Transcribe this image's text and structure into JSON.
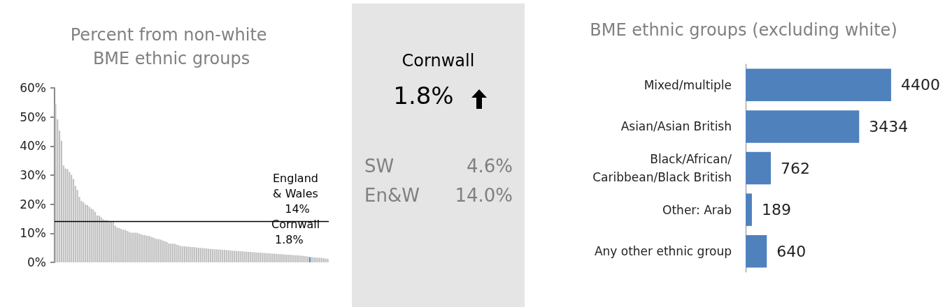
{
  "chart_data": [
    {
      "type": "bar",
      "title": "Percent from non-white BME ethnic groups",
      "categories": [
        null,
        null,
        null,
        null,
        null,
        null,
        null,
        null,
        null,
        null,
        null,
        null,
        null,
        null,
        null,
        null,
        null,
        null,
        null,
        null,
        null,
        null,
        null,
        null,
        null,
        null,
        null,
        null,
        null,
        null,
        null,
        null,
        null,
        null,
        null,
        null,
        null,
        null,
        null,
        null,
        null,
        null,
        null,
        null,
        null,
        null,
        null,
        null,
        null,
        null,
        null,
        null,
        null,
        null,
        null,
        null,
        null,
        null,
        null,
        null,
        null,
        null,
        null,
        null,
        null,
        null,
        null,
        null,
        null,
        null,
        null,
        null,
        null,
        null,
        null,
        null,
        null,
        null,
        null,
        null,
        null,
        null,
        null,
        null,
        null,
        null,
        null,
        null,
        null,
        null,
        null,
        null,
        null,
        null,
        null,
        null,
        null,
        null,
        null,
        null,
        null,
        null,
        null,
        null,
        null,
        null,
        null,
        null,
        null,
        null,
        null,
        null,
        null,
        null,
        null,
        null,
        null,
        null,
        null,
        null,
        null,
        null,
        null,
        null,
        null,
        null,
        null,
        null,
        null,
        null,
        null,
        null,
        null,
        null,
        null,
        null,
        null,
        null
      ],
      "values": [
        54.4,
        49.2,
        45.3,
        41.8,
        33.3,
        32.3,
        32.1,
        31.1,
        30.1,
        28.7,
        26.3,
        24.9,
        22.5,
        21.1,
        20.7,
        19.9,
        19.7,
        19.1,
        18.5,
        18.1,
        17.3,
        16.1,
        16.1,
        15.5,
        14.8,
        14.5,
        14.5,
        14.2,
        14.1,
        13.9,
        12.6,
        12.0,
        11.8,
        11.5,
        11.2,
        11.2,
        10.8,
        10.5,
        10.2,
        10.2,
        10.2,
        10.2,
        9.9,
        9.7,
        9.4,
        9.4,
        9.1,
        9.1,
        8.8,
        8.6,
        8.3,
        8.0,
        8.0,
        7.8,
        7.5,
        7.3,
        7.0,
        6.5,
        6.4,
        6.4,
        6.4,
        6.1,
        5.9,
        5.6,
        5.6,
        5.5,
        5.4,
        5.4,
        5.3,
        5.3,
        5.2,
        5.1,
        5.0,
        5.0,
        4.9,
        4.8,
        4.8,
        4.7,
        4.6,
        4.6,
        4.5,
        4.5,
        4.4,
        4.4,
        4.3,
        4.3,
        4.2,
        4.2,
        4.1,
        4.0,
        4.0,
        3.9,
        3.9,
        3.8,
        3.8,
        3.7,
        3.7,
        3.6,
        3.6,
        3.5,
        3.5,
        3.4,
        3.4,
        3.3,
        3.3,
        3.2,
        3.2,
        3.1,
        3.1,
        3.0,
        3.0,
        2.9,
        2.9,
        2.8,
        2.8,
        2.7,
        2.7,
        2.6,
        2.6,
        2.5,
        2.5,
        2.4,
        2.4,
        2.3,
        2.3,
        2.2,
        2.1,
        2.0,
        1.8,
        1.8,
        1.7,
        1.7,
        1.6,
        1.6,
        1.5,
        1.4,
        1.3,
        1.2
      ],
      "colors": [
        "#bfbfbf",
        "#bfbfbf",
        "#bfbfbf",
        "#bfbfbf",
        "#bfbfbf",
        "#bfbfbf",
        "#bfbfbf",
        "#bfbfbf",
        "#bfbfbf",
        "#bfbfbf",
        "#bfbfbf",
        "#bfbfbf",
        "#bfbfbf",
        "#bfbfbf",
        "#bfbfbf",
        "#bfbfbf",
        "#bfbfbf",
        "#bfbfbf",
        "#bfbfbf",
        "#bfbfbf",
        "#bfbfbf",
        "#bfbfbf",
        "#bfbfbf",
        "#bfbfbf",
        "#bfbfbf",
        "#bfbfbf",
        "#bfbfbf",
        "#bfbfbf",
        "#bfbfbf",
        "#bfbfbf",
        "#bfbfbf",
        "#bfbfbf",
        "#bfbfbf",
        "#bfbfbf",
        "#bfbfbf",
        "#bfbfbf",
        "#bfbfbf",
        "#bfbfbf",
        "#bfbfbf",
        "#bfbfbf",
        "#bfbfbf",
        "#bfbfbf",
        "#bfbfbf",
        "#bfbfbf",
        "#bfbfbf",
        "#bfbfbf",
        "#bfbfbf",
        "#bfbfbf",
        "#bfbfbf",
        "#bfbfbf",
        "#bfbfbf",
        "#bfbfbf",
        "#bfbfbf",
        "#bfbfbf",
        "#bfbfbf",
        "#bfbfbf",
        "#bfbfbf",
        "#bfbfbf",
        "#bfbfbf",
        "#bfbfbf",
        "#bfbfbf",
        "#bfbfbf",
        "#bfbfbf",
        "#bfbfbf",
        "#bfbfbf",
        "#bfbfbf",
        "#bfbfbf",
        "#bfbfbf",
        "#bfbfbf",
        "#bfbfbf",
        "#bfbfbf",
        "#bfbfbf",
        "#bfbfbf",
        "#bfbfbf",
        "#bfbfbf",
        "#bfbfbf",
        "#bfbfbf",
        "#bfbfbf",
        "#bfbfbf",
        "#bfbfbf",
        "#bfbfbf",
        "#bfbfbf",
        "#bfbfbf",
        "#bfbfbf",
        "#bfbfbf",
        "#bfbfbf",
        "#bfbfbf",
        "#bfbfbf",
        "#bfbfbf",
        "#bfbfbf",
        "#bfbfbf",
        "#bfbfbf",
        "#bfbfbf",
        "#bfbfbf",
        "#bfbfbf",
        "#bfbfbf",
        "#bfbfbf",
        "#bfbfbf",
        "#bfbfbf",
        "#bfbfbf",
        "#bfbfbf",
        "#bfbfbf",
        "#bfbfbf",
        "#bfbfbf",
        "#bfbfbf",
        "#bfbfbf",
        "#bfbfbf",
        "#bfbfbf",
        "#bfbfbf",
        "#bfbfbf",
        "#bfbfbf",
        "#bfbfbf",
        "#bfbfbf",
        "#bfbfbf",
        "#bfbfbf",
        "#bfbfbf",
        "#bfbfbf",
        "#bfbfbf",
        "#bfbfbf",
        "#bfbfbf",
        "#bfbfbf",
        "#bfbfbf",
        "#bfbfbf",
        "#bfbfbf",
        "#bfbfbf",
        "#bfbfbf",
        "#bfbfbf",
        "#bfbfbf",
        "#4f81bd",
        "#bfbfbf",
        "#bfbfbf",
        "#bfbfbf",
        "#bfbfbf",
        "#bfbfbf",
        "#bfbfbf",
        "#bfbfbf",
        "#bfbfbf",
        "#bfbfbf"
      ],
      "ylim": [
        0,
        60
      ],
      "yticks": [
        {
          "value": 0,
          "label": "0%"
        },
        {
          "value": 10,
          "label": "10%"
        },
        {
          "value": 20,
          "label": "20%"
        },
        {
          "value": 30,
          "label": "30%"
        },
        {
          "value": 40,
          "label": "40%"
        },
        {
          "value": 50,
          "label": "50%"
        },
        {
          "value": 60,
          "label": "60%"
        }
      ],
      "tick_labels": "y",
      "ref_lines": [
        {
          "axis": "y",
          "value": 14,
          "label": "England & Wales 14%",
          "color": "#000000"
        }
      ],
      "annotations": [
        {
          "text": "Cornwall 1.8%",
          "y": 1.8
        }
      ]
    },
    {
      "type": "other",
      "annotations": [
        "Cornwall",
        "1.8%",
        "SW",
        "4.6%",
        "En&W",
        "14.0%"
      ]
    },
    {
      "type": "bar",
      "orientation": "horizontal",
      "title": "BME ethnic groups (excluding white)",
      "categories": [
        "Mixed/multiple",
        "Asian/Asian British",
        "Black/African/Caribbean/Black British",
        "Other: Arab",
        "Any other ethnic group"
      ],
      "values": [
        4400,
        3434,
        762,
        189,
        640
      ],
      "color": "#4f81bd",
      "data_labels": true,
      "tick_labels": "y"
    }
  ]
}
